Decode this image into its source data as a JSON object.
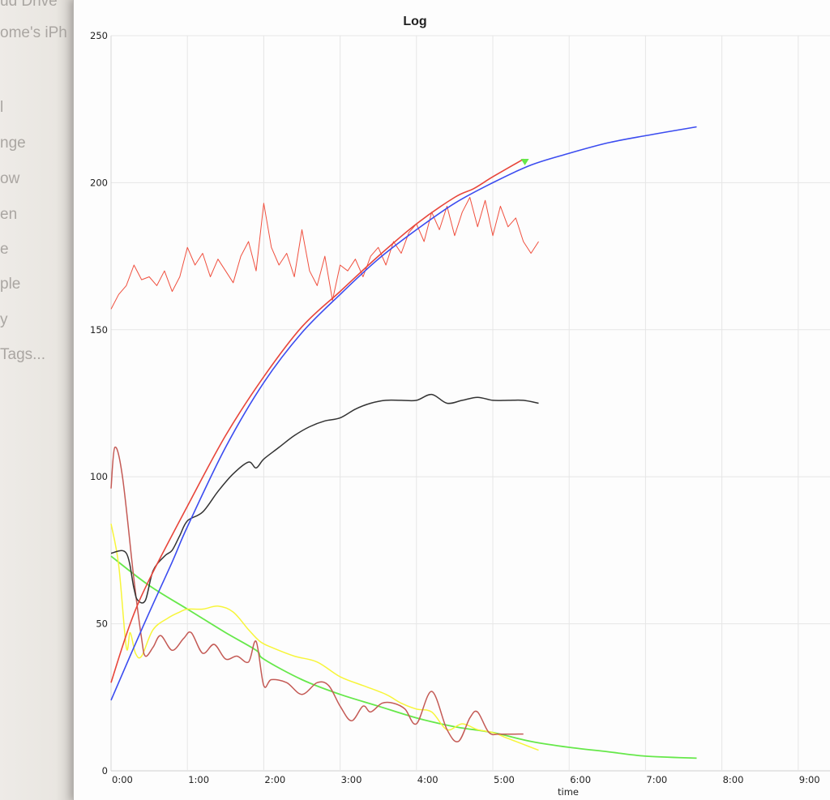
{
  "sidebar": {
    "items": [
      "ud Drive",
      "ome's iPh",
      "l",
      "nge",
      "ow",
      "en",
      "e",
      "ple",
      "y",
      "Tags..."
    ]
  },
  "chart_data": {
    "type": "line",
    "title": "Log",
    "xlabel": "time",
    "ylabel": "",
    "xlim": [
      0,
      9.4
    ],
    "ylim": [
      0,
      250
    ],
    "grid": true,
    "legend": "none",
    "x_unit": "minutes",
    "xticks": [
      {
        "v": 0,
        "label": "0:00"
      },
      {
        "v": 1,
        "label": "1:00"
      },
      {
        "v": 2,
        "label": "2:00"
      },
      {
        "v": 3,
        "label": "3:00"
      },
      {
        "v": 4,
        "label": "4:00"
      },
      {
        "v": 5,
        "label": "5:00"
      },
      {
        "v": 6,
        "label": "6:00"
      },
      {
        "v": 7,
        "label": "7:00"
      },
      {
        "v": 8,
        "label": "8:00"
      },
      {
        "v": 9,
        "label": "9:00"
      }
    ],
    "yticks": [
      {
        "v": 0,
        "label": "0"
      },
      {
        "v": 50,
        "label": "50"
      },
      {
        "v": 100,
        "label": "100"
      },
      {
        "v": 150,
        "label": "150"
      },
      {
        "v": 200,
        "label": "200"
      },
      {
        "v": 250,
        "label": "250"
      }
    ],
    "series": [
      {
        "name": "noisy-red",
        "color": "#f0503f",
        "width": 1,
        "smooth": false,
        "points": [
          [
            0,
            157
          ],
          [
            0.1,
            162
          ],
          [
            0.2,
            165
          ],
          [
            0.3,
            172
          ],
          [
            0.4,
            167
          ],
          [
            0.5,
            168
          ],
          [
            0.6,
            165
          ],
          [
            0.7,
            170
          ],
          [
            0.8,
            163
          ],
          [
            0.9,
            168
          ],
          [
            1.0,
            178
          ],
          [
            1.1,
            172
          ],
          [
            1.2,
            176
          ],
          [
            1.3,
            168
          ],
          [
            1.4,
            174
          ],
          [
            1.5,
            170
          ],
          [
            1.6,
            166
          ],
          [
            1.7,
            175
          ],
          [
            1.8,
            180
          ],
          [
            1.9,
            170
          ],
          [
            2.0,
            193
          ],
          [
            2.1,
            178
          ],
          [
            2.2,
            172
          ],
          [
            2.3,
            176
          ],
          [
            2.4,
            168
          ],
          [
            2.5,
            184
          ],
          [
            2.6,
            170
          ],
          [
            2.7,
            165
          ],
          [
            2.8,
            175
          ],
          [
            2.9,
            160
          ],
          [
            3.0,
            172
          ],
          [
            3.1,
            170
          ],
          [
            3.2,
            174
          ],
          [
            3.3,
            168
          ],
          [
            3.4,
            175
          ],
          [
            3.5,
            178
          ],
          [
            3.6,
            172
          ],
          [
            3.7,
            180
          ],
          [
            3.8,
            176
          ],
          [
            3.9,
            183
          ],
          [
            4.0,
            186
          ],
          [
            4.1,
            180
          ],
          [
            4.2,
            190
          ],
          [
            4.3,
            184
          ],
          [
            4.4,
            192
          ],
          [
            4.5,
            182
          ],
          [
            4.6,
            190
          ],
          [
            4.7,
            195
          ],
          [
            4.8,
            185
          ],
          [
            4.9,
            194
          ],
          [
            5.0,
            182
          ],
          [
            5.1,
            192
          ],
          [
            5.2,
            185
          ],
          [
            5.3,
            188
          ],
          [
            5.4,
            180
          ],
          [
            5.5,
            176
          ],
          [
            5.6,
            180
          ]
        ]
      },
      {
        "name": "green",
        "color": "#66e84a",
        "width": 1.8,
        "smooth": true,
        "points": [
          [
            0,
            73
          ],
          [
            0.5,
            63
          ],
          [
            1,
            55
          ],
          [
            1.5,
            47
          ],
          [
            1.9,
            41
          ],
          [
            2,
            38
          ],
          [
            2.5,
            31
          ],
          [
            3,
            26
          ],
          [
            3.5,
            22
          ],
          [
            4,
            18
          ],
          [
            4.5,
            15
          ],
          [
            5,
            13
          ],
          [
            5.5,
            10
          ],
          [
            6,
            8
          ],
          [
            6.5,
            6.5
          ],
          [
            7,
            5
          ],
          [
            7.67,
            4.3
          ]
        ]
      },
      {
        "name": "yellow",
        "color": "#f7f53a",
        "width": 1.5,
        "smooth": true,
        "points": [
          [
            0,
            84
          ],
          [
            0.1,
            70
          ],
          [
            0.2,
            42
          ],
          [
            0.25,
            47
          ],
          [
            0.32,
            40
          ],
          [
            0.4,
            39
          ],
          [
            0.55,
            48
          ],
          [
            0.75,
            52
          ],
          [
            0.9,
            54
          ],
          [
            1.0,
            55
          ],
          [
            1.2,
            55
          ],
          [
            1.4,
            56
          ],
          [
            1.6,
            54
          ],
          [
            1.8,
            48
          ],
          [
            1.95,
            44
          ],
          [
            2.1,
            42
          ],
          [
            2.4,
            39
          ],
          [
            2.7,
            37
          ],
          [
            3.0,
            32
          ],
          [
            3.3,
            29
          ],
          [
            3.6,
            26
          ],
          [
            3.8,
            23
          ],
          [
            4.0,
            21
          ],
          [
            4.2,
            20
          ],
          [
            4.4,
            14
          ],
          [
            4.6,
            16
          ],
          [
            4.8,
            14
          ],
          [
            5.0,
            13
          ],
          [
            5.2,
            11
          ],
          [
            5.4,
            9
          ],
          [
            5.6,
            7
          ]
        ]
      },
      {
        "name": "dark-red",
        "color": "#c45a55",
        "width": 1.5,
        "smooth": true,
        "points": [
          [
            0,
            96
          ],
          [
            0.05,
            110
          ],
          [
            0.15,
            100
          ],
          [
            0.3,
            65
          ],
          [
            0.4,
            45
          ],
          [
            0.45,
            39
          ],
          [
            0.55,
            42
          ],
          [
            0.65,
            46
          ],
          [
            0.8,
            41
          ],
          [
            0.95,
            45
          ],
          [
            1.05,
            47
          ],
          [
            1.2,
            40
          ],
          [
            1.35,
            43
          ],
          [
            1.5,
            38
          ],
          [
            1.65,
            39
          ],
          [
            1.8,
            37
          ],
          [
            1.9,
            44
          ],
          [
            2.0,
            29
          ],
          [
            2.1,
            31
          ],
          [
            2.3,
            30
          ],
          [
            2.5,
            26
          ],
          [
            2.7,
            30
          ],
          [
            2.85,
            29
          ],
          [
            3.0,
            22
          ],
          [
            3.15,
            17
          ],
          [
            3.3,
            22
          ],
          [
            3.4,
            20
          ],
          [
            3.55,
            23
          ],
          [
            3.7,
            23
          ],
          [
            3.85,
            21
          ],
          [
            4.0,
            16
          ],
          [
            4.2,
            27
          ],
          [
            4.4,
            14
          ],
          [
            4.55,
            10
          ],
          [
            4.7,
            18
          ],
          [
            4.8,
            20
          ],
          [
            4.95,
            13
          ],
          [
            5.1,
            12.5
          ],
          [
            5.4,
            12.5
          ]
        ]
      },
      {
        "name": "black",
        "color": "#333333",
        "width": 1.5,
        "smooth": true,
        "points": [
          [
            0,
            74
          ],
          [
            0.2,
            74
          ],
          [
            0.3,
            62
          ],
          [
            0.35,
            58
          ],
          [
            0.45,
            58
          ],
          [
            0.55,
            68
          ],
          [
            0.7,
            73
          ],
          [
            0.8,
            75
          ],
          [
            0.9,
            80
          ],
          [
            1.0,
            85
          ],
          [
            1.2,
            88
          ],
          [
            1.4,
            95
          ],
          [
            1.6,
            101
          ],
          [
            1.8,
            105
          ],
          [
            1.9,
            103
          ],
          [
            2.0,
            106
          ],
          [
            2.2,
            110
          ],
          [
            2.4,
            114
          ],
          [
            2.6,
            117
          ],
          [
            2.8,
            119
          ],
          [
            3.0,
            120
          ],
          [
            3.2,
            123
          ],
          [
            3.4,
            125
          ],
          [
            3.6,
            126
          ],
          [
            3.8,
            126
          ],
          [
            4.0,
            126
          ],
          [
            4.2,
            128
          ],
          [
            4.4,
            125
          ],
          [
            4.6,
            126
          ],
          [
            4.8,
            127
          ],
          [
            5.0,
            126
          ],
          [
            5.2,
            126
          ],
          [
            5.4,
            126
          ],
          [
            5.6,
            125
          ]
        ]
      },
      {
        "name": "red-smooth",
        "color": "#e8453a",
        "width": 1.6,
        "smooth": true,
        "points": [
          [
            0,
            30
          ],
          [
            0.25,
            50
          ],
          [
            0.5,
            65
          ],
          [
            1,
            90
          ],
          [
            1.5,
            114
          ],
          [
            2,
            134
          ],
          [
            2.5,
            151
          ],
          [
            3,
            163
          ],
          [
            3.5,
            175
          ],
          [
            4,
            186
          ],
          [
            4.5,
            195
          ],
          [
            4.75,
            198
          ],
          [
            5,
            202
          ],
          [
            5.4,
            208
          ]
        ]
      },
      {
        "name": "blue",
        "color": "#3b4cf0",
        "width": 1.6,
        "smooth": true,
        "points": [
          [
            0,
            24
          ],
          [
            0.4,
            48
          ],
          [
            0.8,
            71
          ],
          [
            1,
            83
          ],
          [
            1.5,
            110
          ],
          [
            2,
            132
          ],
          [
            2.5,
            149
          ],
          [
            3,
            162
          ],
          [
            3.5,
            174
          ],
          [
            4,
            184
          ],
          [
            4.5,
            193
          ],
          [
            5,
            200
          ],
          [
            5.5,
            206
          ],
          [
            6,
            210
          ],
          [
            6.5,
            213.5
          ],
          [
            7,
            216
          ],
          [
            7.67,
            219
          ]
        ]
      }
    ],
    "marker": {
      "name": "current-point",
      "shape": "triangle-down",
      "color": "#66e84a",
      "point": [
        5.42,
        207
      ]
    }
  }
}
